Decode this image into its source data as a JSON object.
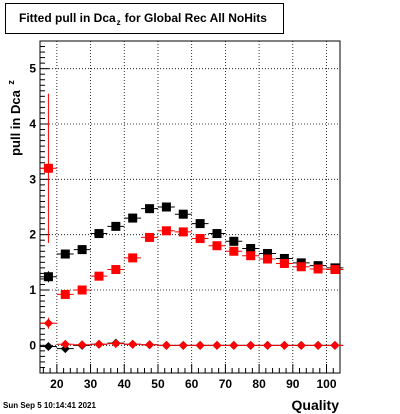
{
  "chart_data": {
    "type": "scatter",
    "title": "Fitted pull in Dca",
    "title_subscript": "z",
    "title_rest": "for Global Rec All NoHits",
    "xlabel": "Quality",
    "ylabel": "pull in Dca",
    "ylabel_subscript": "z",
    "xlim": [
      15,
      104
    ],
    "ylim": [
      -0.5,
      5.5
    ],
    "x_ticks": [
      20,
      30,
      40,
      50,
      60,
      70,
      80,
      90,
      100
    ],
    "x_tick_labels": [
      "20",
      "30",
      "40",
      "50",
      "60",
      "70",
      "80",
      "90",
      "100"
    ],
    "y_ticks": [
      0,
      1,
      2,
      3,
      4,
      5
    ],
    "y_tick_labels": [
      "0",
      "1",
      "2",
      "3",
      "4",
      "5"
    ],
    "grid": true,
    "series": [
      {
        "color": "#000000",
        "marker": "square",
        "x": [
          17.5,
          22.5,
          27.5,
          32.5,
          37.5,
          42.5,
          47.5,
          52.5,
          57.5,
          62.5,
          67.5,
          72.5,
          77.5,
          82.5,
          87.5,
          92.5,
          97.5,
          102.5
        ],
        "y": [
          1.24,
          1.65,
          1.73,
          2.02,
          2.15,
          2.3,
          2.47,
          2.5,
          2.37,
          2.2,
          2.02,
          1.88,
          1.75,
          1.66,
          1.57,
          1.49,
          1.44,
          1.4
        ],
        "yerr": [
          0.1,
          0.04,
          0.03,
          0.03,
          0.03,
          0.02,
          0.02,
          0.02,
          0.02,
          0.02,
          0.02,
          0.02,
          0.02,
          0.02,
          0.02,
          0.02,
          0.02,
          0.02
        ]
      },
      {
        "color": "#ff0000",
        "marker": "square",
        "x": [
          17.5,
          22.5,
          27.5,
          32.5,
          37.5,
          42.5,
          47.5,
          52.5,
          57.5,
          62.5,
          67.5,
          72.5,
          77.5,
          82.5,
          87.5,
          92.5,
          97.5,
          102.5
        ],
        "y": [
          3.2,
          0.92,
          1.0,
          1.25,
          1.37,
          1.58,
          1.95,
          2.07,
          2.05,
          1.93,
          1.8,
          1.7,
          1.62,
          1.56,
          1.48,
          1.42,
          1.38,
          1.37
        ],
        "yerr": [
          1.35,
          0.04,
          0.03,
          0.03,
          0.03,
          0.02,
          0.02,
          0.02,
          0.02,
          0.02,
          0.02,
          0.02,
          0.02,
          0.02,
          0.02,
          0.02,
          0.02,
          0.02
        ]
      },
      {
        "color": "#000000",
        "marker": "diamond",
        "x": [
          17.5,
          22.5,
          27.5,
          32.5,
          37.5,
          42.5,
          47.5,
          52.5,
          57.5,
          62.5,
          67.5,
          72.5,
          77.5,
          82.5,
          87.5,
          92.5,
          97.5,
          102.5
        ],
        "y": [
          -0.02,
          -0.06,
          0.0,
          0.02,
          0.04,
          0.02,
          0.01,
          0.0,
          0.0,
          0.0,
          0.0,
          0.0,
          0.0,
          0.0,
          0.0,
          0.0,
          0.0,
          0.0
        ],
        "yerr": [
          0.05,
          0.02,
          0.01,
          0.01,
          0.01,
          0.01,
          0.01,
          0.01,
          0.01,
          0.01,
          0.01,
          0.01,
          0.01,
          0.01,
          0.01,
          0.01,
          0.01,
          0.01
        ]
      },
      {
        "color": "#ff0000",
        "marker": "diamond",
        "x": [
          17.5,
          22.5,
          27.5,
          32.5,
          37.5,
          42.5,
          47.5,
          52.5,
          57.5,
          62.5,
          67.5,
          72.5,
          77.5,
          82.5,
          87.5,
          92.5,
          97.5,
          102.5
        ],
        "y": [
          0.4,
          0.02,
          0.01,
          0.02,
          0.03,
          0.02,
          0.01,
          0.0,
          0.0,
          0.0,
          0.0,
          0.0,
          0.0,
          0.0,
          0.0,
          0.0,
          0.0,
          0.0
        ],
        "yerr": [
          0.1,
          0.02,
          0.01,
          0.01,
          0.01,
          0.01,
          0.01,
          0.01,
          0.01,
          0.01,
          0.01,
          0.01,
          0.01,
          0.01,
          0.01,
          0.01,
          0.01,
          0.01
        ]
      }
    ]
  },
  "timestamp": "Sun Sep  5 10:14:41 2021"
}
